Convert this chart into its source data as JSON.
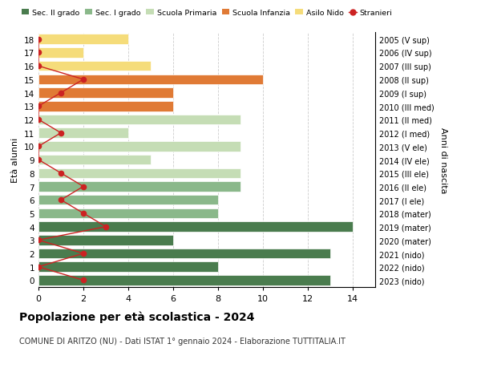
{
  "ages": [
    18,
    17,
    16,
    15,
    14,
    13,
    12,
    11,
    10,
    9,
    8,
    7,
    6,
    5,
    4,
    3,
    2,
    1,
    0
  ],
  "right_labels": [
    "2005 (V sup)",
    "2006 (IV sup)",
    "2007 (III sup)",
    "2008 (II sup)",
    "2009 (I sup)",
    "2010 (III med)",
    "2011 (II med)",
    "2012 (I med)",
    "2013 (V ele)",
    "2014 (IV ele)",
    "2015 (III ele)",
    "2016 (II ele)",
    "2017 (I ele)",
    "2018 (mater)",
    "2019 (mater)",
    "2020 (mater)",
    "2021 (nido)",
    "2022 (nido)",
    "2023 (nido)"
  ],
  "bar_values": [
    13,
    8,
    13,
    6,
    14,
    8,
    8,
    9,
    9,
    5,
    9,
    4,
    9,
    6,
    6,
    10,
    5,
    2,
    4
  ],
  "bar_colors": [
    "#4a7c4e",
    "#4a7c4e",
    "#4a7c4e",
    "#4a7c4e",
    "#4a7c4e",
    "#8ab88a",
    "#8ab88a",
    "#8ab88a",
    "#c5ddb5",
    "#c5ddb5",
    "#c5ddb5",
    "#c5ddb5",
    "#c5ddb5",
    "#e07a35",
    "#e07a35",
    "#e07a35",
    "#f5dc7a",
    "#f5dc7a",
    "#f5dc7a"
  ],
  "stranieri_values": [
    2,
    0,
    2,
    0,
    3,
    2,
    1,
    2,
    1,
    0,
    0,
    1,
    0,
    0,
    1,
    2,
    0,
    0,
    0
  ],
  "stranieri_color": "#cc2222",
  "legend_labels": [
    "Sec. II grado",
    "Sec. I grado",
    "Scuola Primaria",
    "Scuola Infanzia",
    "Asilo Nido",
    "Stranieri"
  ],
  "legend_colors": [
    "#4a7c4e",
    "#8ab88a",
    "#c5ddb5",
    "#e07a35",
    "#f5dc7a",
    "#cc2222"
  ],
  "title": "Popolazione per età scolastica - 2024",
  "subtitle": "COMUNE DI ARITZO (NU) - Dati ISTAT 1° gennaio 2024 - Elaborazione TUTTITALIA.IT",
  "xlabel_left": "Età alunni",
  "ylabel_right": "Anni di nascita",
  "xlim": [
    0,
    15
  ],
  "xticks": [
    0,
    2,
    4,
    6,
    8,
    10,
    12,
    14
  ],
  "background_color": "#ffffff",
  "grid_color": "#cccccc"
}
